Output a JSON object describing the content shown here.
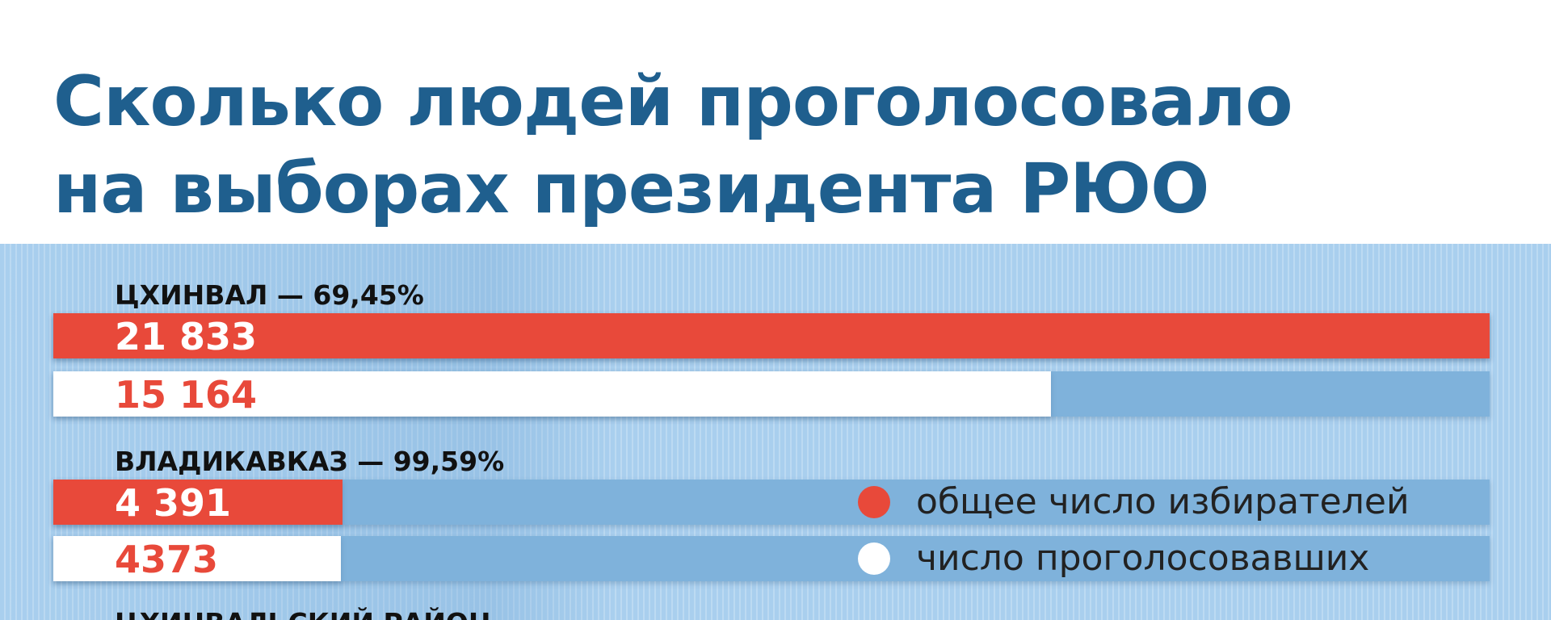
{
  "title_line1": "Сколько людей проголосовало",
  "title_line2": "на выборах президента РЮО",
  "colors": {
    "title": "#1f5f8e",
    "total_bar": "#e8493a",
    "voted_bar": "#ffffff",
    "background": "#a9cfee",
    "track": "#7fb2db"
  },
  "legend": {
    "total": "общее число избирателей",
    "voted": "число проголосовавших",
    "placement": "right"
  },
  "chart_data": {
    "type": "bar",
    "orientation": "horizontal",
    "title": "Сколько людей проголосовало на выборах президента РЮО",
    "xlim": [
      0,
      21833
    ],
    "grid": false,
    "series": [
      {
        "name": "общее число избирателей",
        "values": [
          21833,
          4391
        ]
      },
      {
        "name": "число проголосовавших",
        "values": [
          15164,
          4373
        ]
      }
    ],
    "groups": [
      {
        "label": "ЦХИНВАЛ — 69,45%",
        "total": 21833,
        "total_label": "21 833",
        "voted": 15164,
        "voted_label": "15 164"
      },
      {
        "label": "ВЛАДИКАВКАЗ — 99,59%",
        "total": 4391,
        "total_label": "4 391",
        "voted": 4373,
        "voted_label": "4373"
      },
      {
        "label": "ЦХИНВАЛЬСКИЙ РАЙОН"
      }
    ]
  }
}
